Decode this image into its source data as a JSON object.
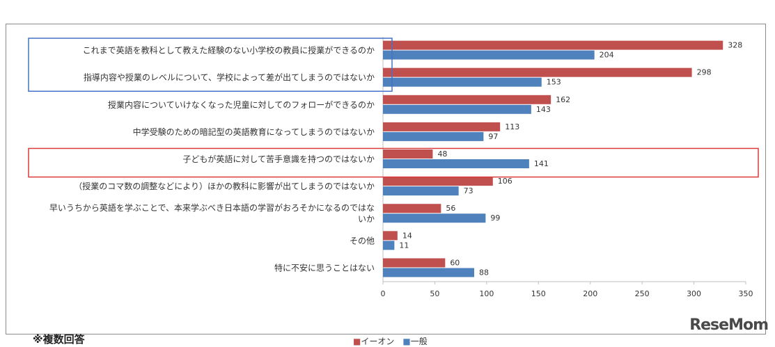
{
  "note": "※複数回答",
  "watermark": "ReseMom",
  "legend": {
    "aeon": "■イーオン",
    "general": "■一般"
  },
  "colors": {
    "aeon": "#c0504d",
    "general": "#4f81bd",
    "highlight_blue": "#4472c4",
    "highlight_red": "#d93a3a"
  },
  "chart_data": {
    "type": "bar",
    "orientation": "horizontal",
    "categories": [
      [
        "これまで英語を教科として教えた経験のない小学校の教員に授業ができるのか"
      ],
      [
        "指導内容や授業のレベルについて、学校によって差が出てしまうのではないか"
      ],
      [
        "授業内容についていけなくなった児童に対してのフォローができるのか"
      ],
      [
        "中学受験のための暗記型の英語教育になってしまうのではないか"
      ],
      [
        "子どもが英語に対して苦手意識を持つのではないか"
      ],
      [
        "（授業のコマ数の調整などにより）ほかの教科に影響が出てしまうのではないか"
      ],
      [
        "早いうちから英語を学ぶことで、本来学ぶべき日本語の学習がおろそかになるのではな",
        "いか"
      ],
      [
        "その他"
      ],
      [
        "特に不安に思うことはない"
      ]
    ],
    "series": [
      {
        "name": "イーオン",
        "values": [
          328,
          298,
          162,
          113,
          48,
          106,
          56,
          14,
          60
        ]
      },
      {
        "name": "一般",
        "values": [
          204,
          153,
          143,
          97,
          141,
          73,
          99,
          11,
          88
        ]
      }
    ],
    "xlim": [
      0,
      350
    ],
    "xticks": [
      0,
      50,
      100,
      150,
      200,
      250,
      300,
      350
    ],
    "legend_position": "bottom"
  }
}
